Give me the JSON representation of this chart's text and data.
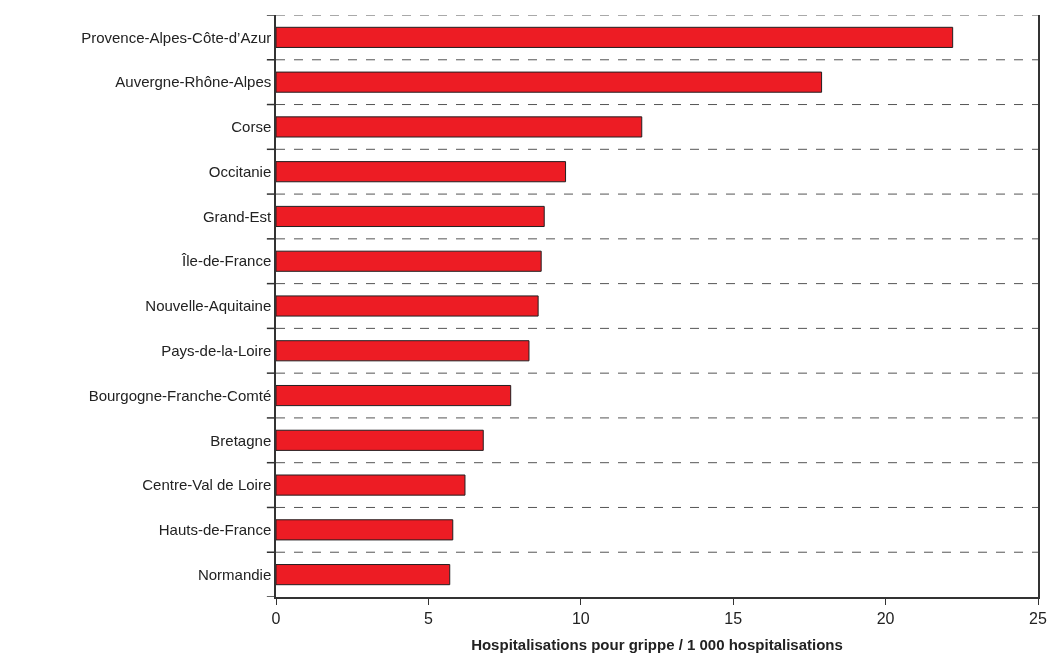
{
  "chart_data": {
    "type": "bar",
    "orientation": "horizontal",
    "xlabel": "Hospitalisations pour grippe / 1 000 hospitalisations",
    "categories": [
      "Provence-Alpes-Côte-d’Azur",
      "Auvergne-Rhône-Alpes",
      "Corse",
      "Occitanie",
      "Grand-Est",
      "Île-de-France",
      "Nouvelle-Aquitaine",
      "Pays-de-la-Loire",
      "Bourgogne-Franche-Comté",
      "Bretagne",
      "Centre-Val de Loire",
      "Hauts-de-France",
      "Normandie"
    ],
    "values": [
      22.2,
      17.9,
      12.0,
      9.5,
      8.8,
      8.7,
      8.6,
      8.3,
      7.7,
      6.8,
      6.2,
      5.8,
      5.7
    ],
    "color": "#ed1c24",
    "xlim": [
      0,
      25
    ],
    "xticks": [
      0,
      5,
      10,
      15,
      20,
      25
    ],
    "grid": "y",
    "legend": false
  }
}
